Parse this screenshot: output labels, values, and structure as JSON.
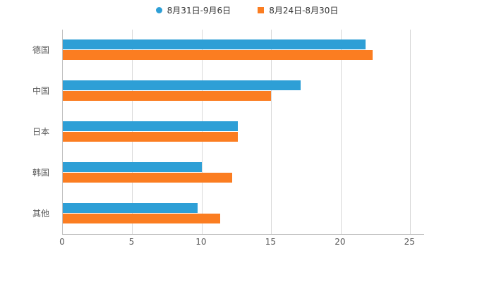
{
  "chart_data": {
    "type": "bar",
    "orientation": "horizontal",
    "title": "",
    "xlabel": "",
    "ylabel": "",
    "categories": [
      "德国",
      "中国",
      "日本",
      "韩国",
      "其他"
    ],
    "series": [
      {
        "name": "8月31日-9月6日",
        "color": "#2E9FD6",
        "marker": "circle",
        "values": [
          21.8,
          17.1,
          12.6,
          10.0,
          9.7
        ]
      },
      {
        "name": "8月24日-8月30日",
        "color": "#FB7D21",
        "marker": "square",
        "values": [
          22.3,
          15.0,
          12.6,
          12.2,
          11.3
        ]
      }
    ],
    "xlim": [
      0,
      25
    ],
    "axis_max": 26,
    "ticks": [
      "0",
      "5",
      "10",
      "15",
      "20",
      "25"
    ],
    "grid": true,
    "legend_position": "top",
    "gridline_color": "#d9d9d9",
    "axis_color": "#bfbfbf",
    "label_color": "#595959"
  }
}
